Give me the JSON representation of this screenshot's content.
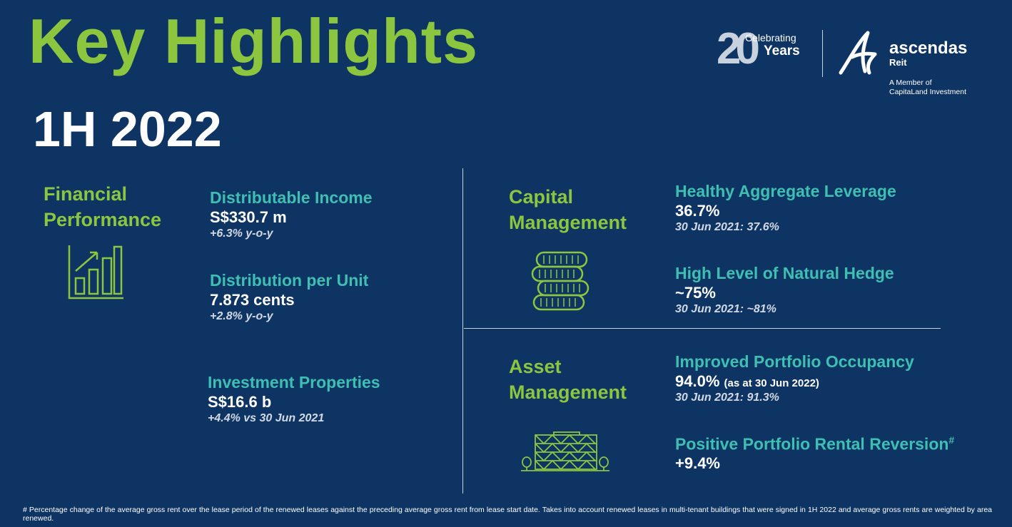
{
  "header": {
    "title": "Key Highlights",
    "period": "1H 2022"
  },
  "branding": {
    "celebrating_number": "20",
    "celebrating_top": "Celebrating",
    "celebrating_bottom": "Years",
    "brand_name": "ascendas",
    "brand_sub": "Reit",
    "member_line1": "A Member of",
    "member_line2": "CapitaLand Investment"
  },
  "financial": {
    "section_line1": "Financial",
    "section_line2": "Performance",
    "icon": "bar-chart-growth-icon",
    "metrics": [
      {
        "label": "Distributable Income",
        "value": "S$330.7 m",
        "sub": "+6.3% y-o-y"
      },
      {
        "label": "Distribution per Unit",
        "value": "7.873 cents",
        "sub": "+2.8% y-o-y"
      },
      {
        "label": "Investment Properties",
        "value": "S$16.6 b",
        "sub": "+4.4% vs 30 Jun 2021"
      }
    ]
  },
  "capital": {
    "section_line1": "Capital",
    "section_line2": "Management",
    "icon": "coin-stack-icon",
    "metrics": [
      {
        "label": "Healthy Aggregate Leverage",
        "value": "36.7%",
        "sub": "30 Jun 2021: 37.6%"
      },
      {
        "label": "High Level of Natural Hedge",
        "value": "~75%",
        "sub": "30 Jun 2021: ~81%"
      }
    ]
  },
  "asset": {
    "section_line1": "Asset",
    "section_line2": "Management",
    "icon": "building-with-trees-icon",
    "metrics": [
      {
        "label": "Improved Portfolio Occupancy",
        "value": "94.0%",
        "value_note": "(as at 30 Jun 2022)",
        "sub": "30 Jun 2021: 91.3%"
      },
      {
        "label": "Positive Portfolio Rental Reversion",
        "label_mark": "#",
        "value": "+9.4%"
      }
    ]
  },
  "footnote": "# Percentage change of the average gross rent over the lease period of the renewed leases against the preceding average gross rent from lease start date. Takes into account renewed leases in multi-tenant buildings that were signed in 1H 2022 and average gross rents are weighted by area renewed.",
  "colors": {
    "background": "#0e3464",
    "accent_green": "#8cc63f",
    "accent_teal": "#3fbfb2",
    "text": "#ffffff"
  }
}
